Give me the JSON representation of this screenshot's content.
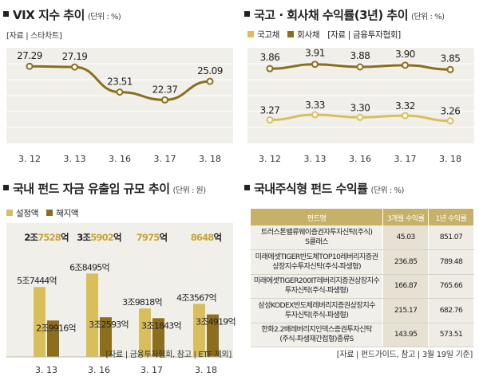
{
  "chart_data": [
    {
      "id": "vix",
      "type": "line",
      "title": "VIX 지수 추이",
      "unit": "(단위 : %)",
      "source": "[자료 | 스타차트]",
      "categories": [
        "3. 12",
        "3. 13",
        "3. 16",
        "3. 17",
        "3. 18"
      ],
      "values": [
        27.29,
        27.19,
        23.51,
        22.37,
        25.09
      ],
      "value_labels": [
        "27.29",
        "27.19",
        "23.51",
        "22.37",
        "25.09"
      ],
      "ylim": [
        16,
        30
      ],
      "colors": {
        "line": "#8c6f1c",
        "bg": "#f1efea"
      }
    },
    {
      "id": "bond",
      "type": "line",
      "title": "국고 · 회사채 수익률(3년) 추이",
      "unit": "(단위 : %)",
      "source": "[자료 | 금융투자협회]",
      "categories": [
        "3. 12",
        "3. 13",
        "3. 16",
        "3. 17",
        "3. 18"
      ],
      "series": [
        {
          "name": "국고채",
          "values": [
            3.27,
            3.33,
            3.3,
            3.32,
            3.26
          ],
          "labels": [
            "3.27",
            "3.33",
            "3.30",
            "3.32",
            "3.26"
          ],
          "color": "#d9bf5c"
        },
        {
          "name": "회사채",
          "values": [
            3.86,
            3.91,
            3.88,
            3.9,
            3.85
          ],
          "labels": [
            "3.86",
            "3.91",
            "3.88",
            "3.90",
            "3.85"
          ],
          "color": "#8c6f1c"
        }
      ],
      "ylim": [
        3.0,
        4.1
      ]
    },
    {
      "id": "flows",
      "type": "bar",
      "title": "국내 펀드 자금 유출입 규모 추이",
      "unit": "(단위 : 원)",
      "source": "[자료 | 금융투자협회, 참고 | ETF 제외]",
      "categories": [
        "3. 13",
        "3. 16",
        "3. 17",
        "3. 18"
      ],
      "series": [
        {
          "name": "설정액",
          "values": [
            57444,
            68495,
            39818,
            43567
          ],
          "labels": [
            "5조7444억",
            "6조8495억",
            "3조9818억",
            "4조3567억"
          ],
          "color": "#d9bf5c"
        },
        {
          "name": "해지액",
          "values": [
            29916,
            32593,
            31843,
            34919
          ],
          "labels": [
            "2조9916억",
            "3조2593억",
            "3조1843억",
            "3조4919억"
          ],
          "color": "#8c6f1c"
        }
      ],
      "net": {
        "labels": [
          "2조7528억",
          "3조5902억",
          "7975억",
          "8648억"
        ],
        "highlight": [
          "7528",
          "5902",
          "7975",
          "8648"
        ],
        "prefix": [
          "2조",
          "3조",
          "",
          ""
        ],
        "suffix": "억"
      },
      "ylim": [
        0,
        72000
      ]
    },
    {
      "id": "returns",
      "type": "table",
      "title": "국내주식형 펀드 수익률",
      "unit": "(단위 : %)",
      "source": "[자료 | 펀드가이드, 참고 | 3월 19일 기준]",
      "columns": [
        "펀드명",
        "3개월 수익률",
        "1년 수익률"
      ],
      "rows": [
        {
          "name1": "트러스톤밸류웨이증권자투자신탁(주식)",
          "name2": "S클래스",
          "r3m": "45.03",
          "r1y": "851.07"
        },
        {
          "name1": "미래에셋TIGER반도체TOP10레버리지증권",
          "name2": "상장지수투자신탁(주식-파생형)",
          "r3m": "236.85",
          "r1y": "789.48"
        },
        {
          "name1": "미래에셋TIGER200IT레버리지증권상장지수",
          "name2": "투자신탁(주식-파생형)",
          "r3m": "166.87",
          "r1y": "765.66"
        },
        {
          "name1": "삼성KODEX반도체레버리지증권상장지수",
          "name2": "투자신탁(주식-파생형)",
          "r3m": "215.17",
          "r1y": "682.76"
        },
        {
          "name1": "한화2.2배레버리지인덱스증권투자신탁",
          "name2": "(주식-파생재간접형)종류S",
          "r3m": "143.95",
          "r1y": "573.51"
        }
      ]
    }
  ]
}
